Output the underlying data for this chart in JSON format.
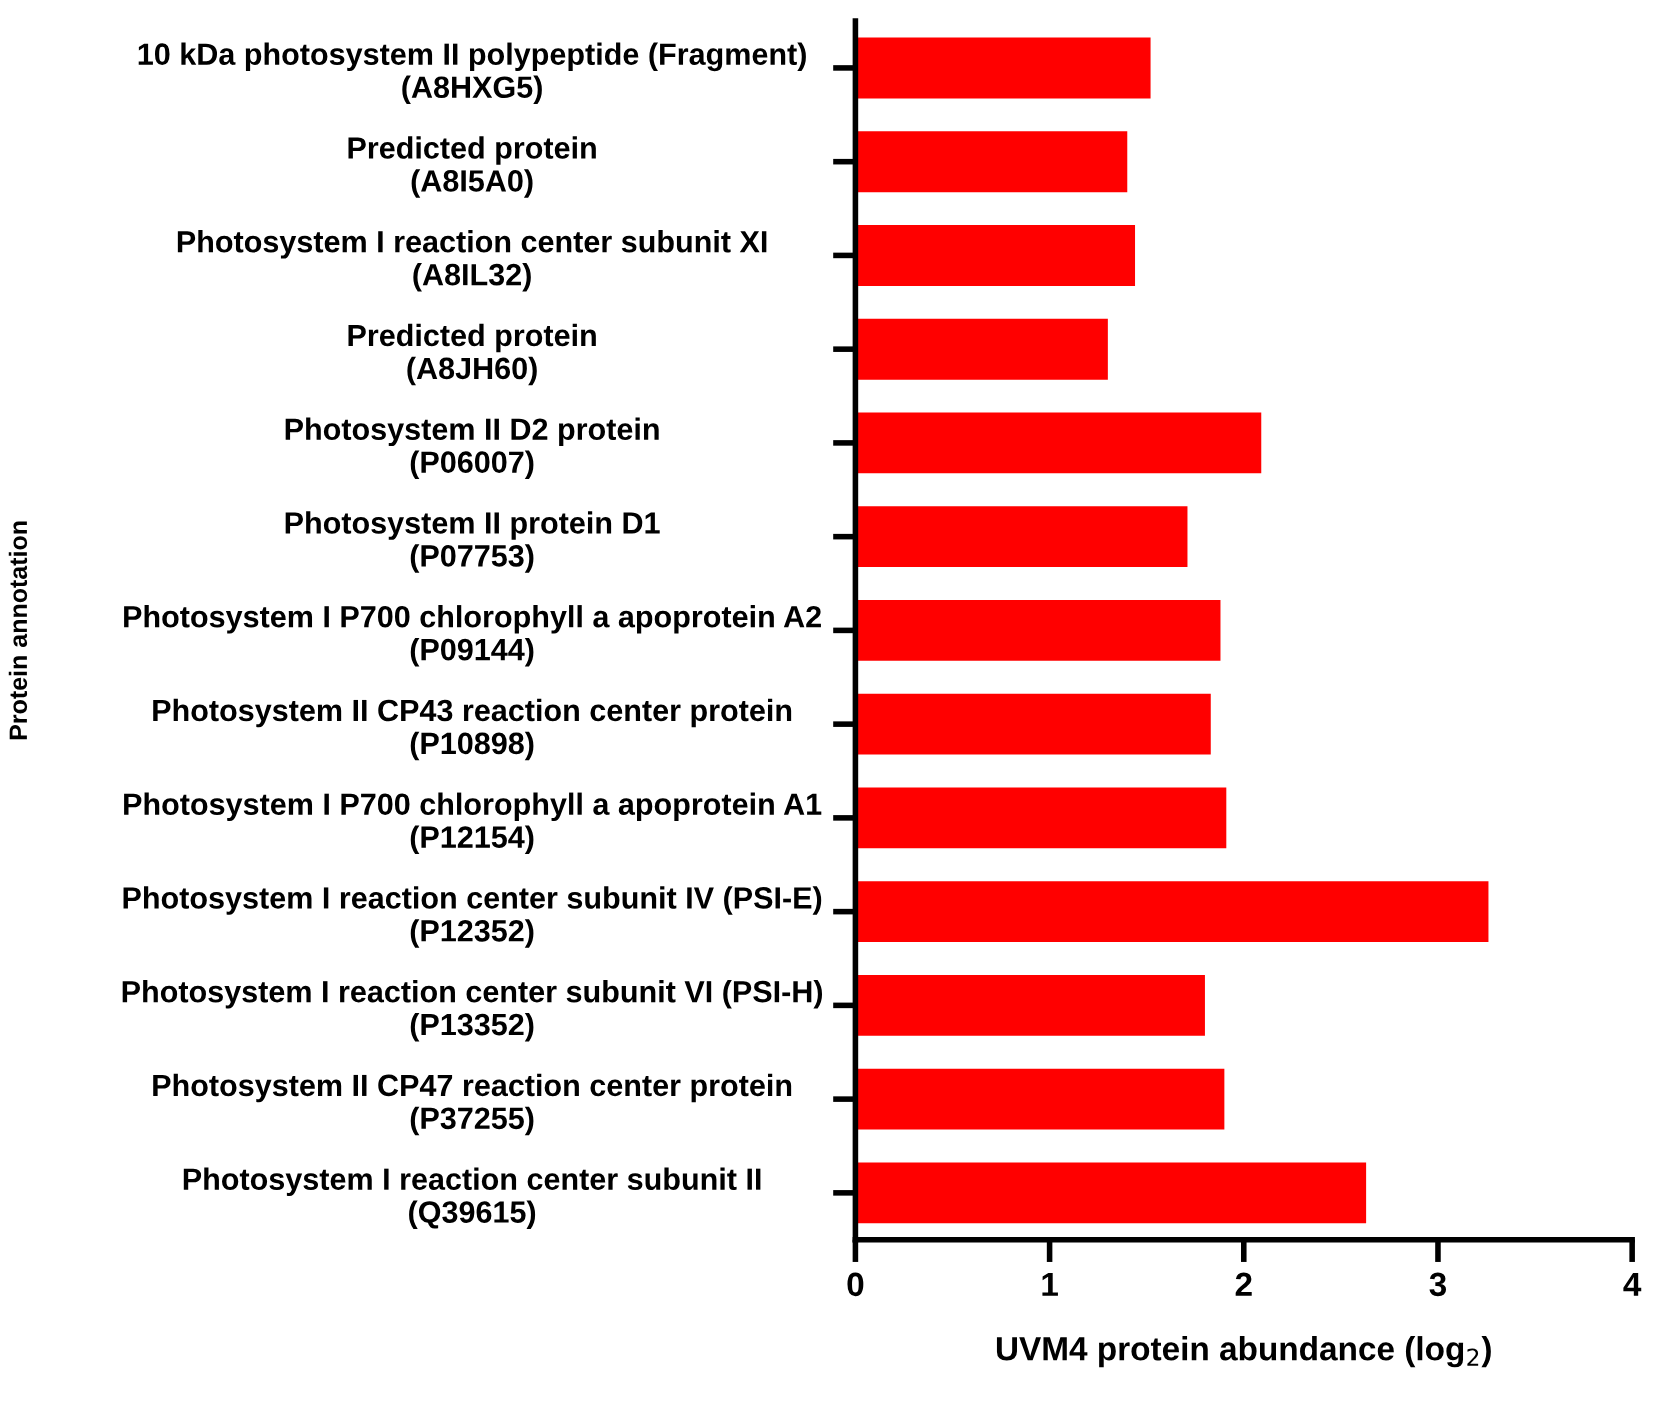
{
  "chart_data": {
    "type": "bar",
    "orientation": "horizontal",
    "xlabel": "UVM4 protein abundance (log$_{2}$)",
    "ylabel": "Protein annotation",
    "categories": [
      "10 kDa photosystem II polypeptide (Fragment)\n(A8HXG5)",
      "Predicted protein\n(A8I5A0)",
      "Photosystem I reaction center subunit XI\n(A8IL32)",
      "Predicted protein\n(A8JH60)",
      "Photosystem II D2 protein\n(P06007)",
      "Photosystem II protein D1\n(P07753)",
      "Photosystem I P700 chlorophyll a apoprotein A2\n(P09144)",
      "Photosystem II CP43 reaction center protein\n(P10898)",
      "Photosystem I P700 chlorophyll a apoprotein A1\n(P12154)",
      "Photosystem I reaction center subunit IV (PSI-E)\n(P12352)",
      "Photosystem I reaction center subunit VI (PSI-H)\n(P13352)",
      "Photosystem II CP47 reaction center protein\n(P37255)",
      "Photosystem I reaction center subunit II\n(Q39615)"
    ],
    "values": [
      1.52,
      1.4,
      1.44,
      1.3,
      2.09,
      1.71,
      1.88,
      1.83,
      1.91,
      3.26,
      1.8,
      1.9,
      2.63
    ],
    "color": "#ff0000",
    "xlim": [
      0,
      4
    ],
    "xticks": [
      0,
      1,
      2,
      3,
      4
    ],
    "grid": false
  }
}
